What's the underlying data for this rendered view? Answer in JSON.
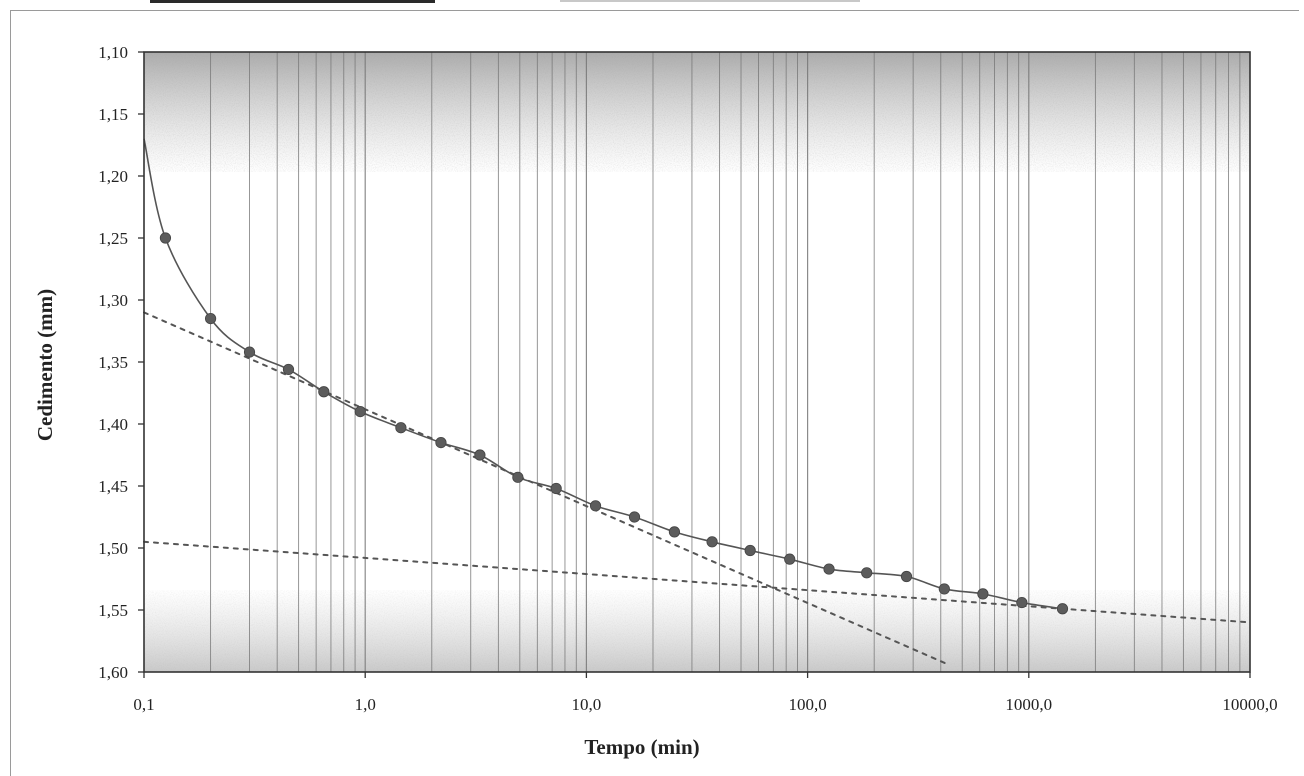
{
  "chart_data": {
    "type": "line",
    "title": "",
    "xlabel": "Tempo (min)",
    "ylabel": "Cedimento (mm)",
    "x_scale": "log",
    "xlim": [
      0.1,
      10000
    ],
    "ylim": [
      1.1,
      1.6
    ],
    "y_inverted": true,
    "grid": "log minor vertical lines",
    "x_ticks": [
      0.1,
      1,
      10,
      100,
      1000,
      10000
    ],
    "x_tick_labels": [
      "0,1",
      "1,0",
      "10,0",
      "100,0",
      "1000,0",
      "10000,0"
    ],
    "y_ticks": [
      1.1,
      1.15,
      1.2,
      1.25,
      1.3,
      1.35,
      1.4,
      1.45,
      1.5,
      1.55,
      1.6
    ],
    "y_tick_labels": [
      "1,10",
      "1,15",
      "1,20",
      "1,25",
      "1,30",
      "1,35",
      "1,40",
      "1,45",
      "1,50",
      "1,55",
      "1,60"
    ],
    "series": [
      {
        "style": "markers with solid line",
        "x": [
          0.125,
          0.2,
          0.3,
          0.45,
          0.65,
          0.95,
          1.45,
          2.2,
          3.3,
          4.9,
          7.3,
          11,
          16.5,
          25,
          37,
          55,
          83,
          125,
          185,
          280,
          415,
          620,
          930,
          1420
        ],
        "y": [
          1.25,
          1.315,
          1.342,
          1.356,
          1.374,
          1.39,
          1.403,
          1.415,
          1.425,
          1.443,
          1.452,
          1.466,
          1.475,
          1.487,
          1.495,
          1.502,
          1.509,
          1.517,
          1.52,
          1.523,
          1.533,
          1.537,
          1.544,
          1.549
        ],
        "curve_start": [
          0.1,
          1.17
        ]
      },
      {
        "style": "dotted line",
        "x": [
          0.1,
          420
        ],
        "y": [
          1.31,
          1.593
        ]
      },
      {
        "style": "dotted line",
        "x": [
          0.1,
          10000
        ],
        "y": [
          1.495,
          1.56
        ]
      }
    ],
    "colors": {
      "line": "#555555",
      "marker": "#5c5c5c",
      "dotted": "#555555",
      "grid": "#777777",
      "plot_shade": "#b8b8b8"
    }
  }
}
